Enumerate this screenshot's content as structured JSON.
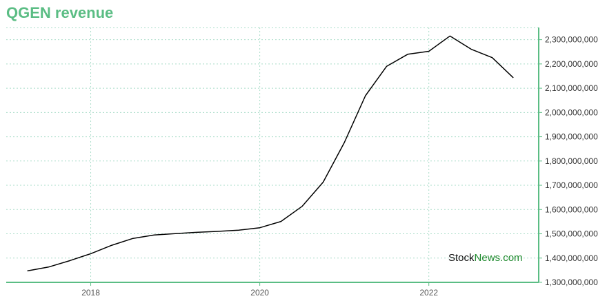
{
  "title": "QGEN revenue",
  "watermark": {
    "part1": "Stock",
    "part2": "News",
    "part3": ".com"
  },
  "colors": {
    "accent": "#5bbd84",
    "line": "#000000",
    "grid": "#a8dcc8",
    "watermark_dark": "#111111",
    "watermark_green": "#1f8a2e"
  },
  "chart_data": {
    "type": "line",
    "title": "QGEN revenue",
    "xlabel": "",
    "ylabel": "",
    "x_ticks": [
      "2018",
      "2020",
      "2022"
    ],
    "x_tick_years": [
      2018,
      2020,
      2022
    ],
    "xlim": [
      2017.0,
      2023.3
    ],
    "y_ticks": [
      {
        "value": 1300000000,
        "label": "1,300,000,000"
      },
      {
        "value": 1400000000,
        "label": "1,400,000,000"
      },
      {
        "value": 1500000000,
        "label": "1,500,000,000"
      },
      {
        "value": 1600000000,
        "label": "1,600,000,000"
      },
      {
        "value": 1700000000,
        "label": "1,700,000,000"
      },
      {
        "value": 1800000000,
        "label": "1,800,000,000"
      },
      {
        "value": 1900000000,
        "label": "1,900,000,000"
      },
      {
        "value": 2000000000,
        "label": "2,000,000,000"
      },
      {
        "value": 2100000000,
        "label": "2,100,000,000"
      },
      {
        "value": 2200000000,
        "label": "2,200,000,000"
      },
      {
        "value": 2300000000,
        "label": "2,300,000,000"
      }
    ],
    "ylim": [
      1300000000,
      2350000000
    ],
    "grid": true,
    "y_axis_side": "right",
    "series": [
      {
        "x": [
          2017.25,
          2017.5,
          2017.75,
          2018.0,
          2018.25,
          2018.5,
          2018.75,
          2019.0,
          2019.25,
          2019.5,
          2019.75,
          2020.0,
          2020.25,
          2020.5,
          2020.75,
          2021.0,
          2021.25,
          2021.5,
          2021.75,
          2022.0,
          2022.25,
          2022.5,
          2022.75,
          2023.0
        ],
        "y": [
          1347000000,
          1363000000,
          1389000000,
          1418000000,
          1453000000,
          1481000000,
          1495000000,
          1501000000,
          1506000000,
          1510000000,
          1515000000,
          1525000000,
          1551000000,
          1613000000,
          1713000000,
          1876000000,
          2069000000,
          2190000000,
          2240000000,
          2252000000,
          2315000000,
          2261000000,
          2226000000,
          2143000000
        ]
      }
    ]
  }
}
